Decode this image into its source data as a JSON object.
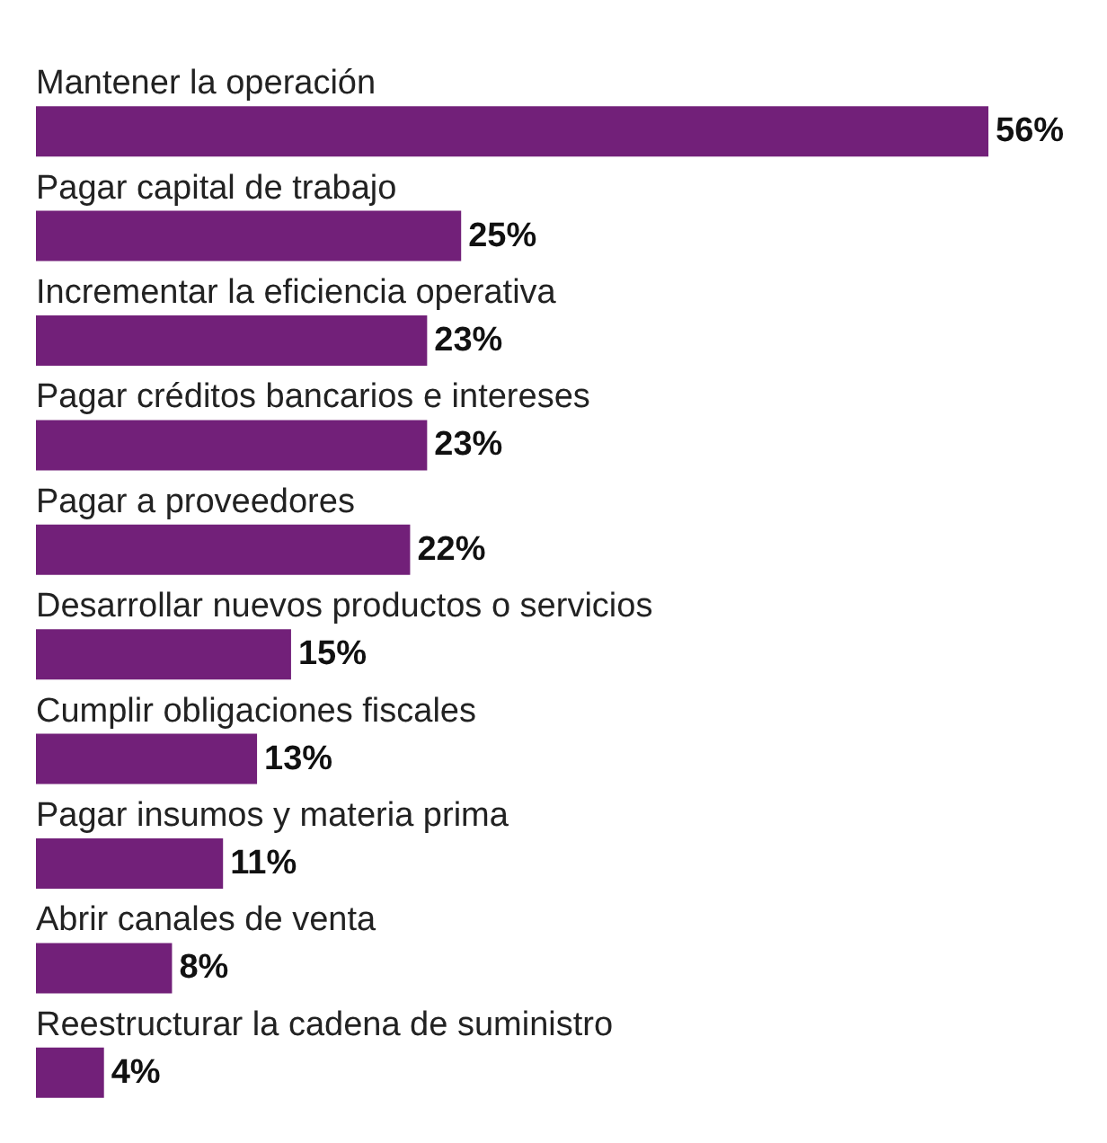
{
  "chart_data": {
    "type": "bar",
    "orientation": "horizontal",
    "categories": [
      "Mantener la operación",
      "Pagar capital de trabajo",
      "Incrementar la eficiencia operativa",
      "Pagar créditos bancarios e intereses",
      "Pagar a proveedores",
      "Desarrollar nuevos productos o servicios",
      "Cumplir obligaciones fiscales",
      "Pagar insumos y materia prima",
      "Abrir canales de venta",
      "Reestructurar la cadena de suministro"
    ],
    "values": [
      56,
      25,
      23,
      23,
      22,
      15,
      13,
      11,
      8,
      4
    ],
    "value_labels": [
      "56%",
      "25%",
      "23%",
      "23%",
      "22%",
      "15%",
      "13%",
      "11%",
      "8%",
      "4%"
    ],
    "color": "#722079"
  }
}
